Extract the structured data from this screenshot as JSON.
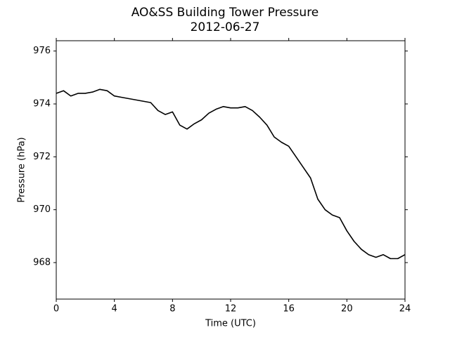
{
  "chart_data": {
    "type": "line",
    "title": "AO&SS Building Tower Pressure",
    "subtitle": "2012-06-27",
    "x_label": "Time (UTC)",
    "y_label": "Pressure (hPa)",
    "x": [
      0,
      0.5,
      1,
      1.5,
      2,
      2.5,
      3,
      3.5,
      4,
      4.5,
      5,
      5.5,
      6,
      6.5,
      7,
      7.5,
      8,
      8.5,
      9,
      9.5,
      10,
      10.5,
      11,
      11.5,
      12,
      12.5,
      13,
      13.5,
      14,
      14.5,
      15,
      15.5,
      16,
      16.5,
      17,
      17.5,
      18,
      18.5,
      19,
      19.5,
      20,
      20.5,
      21,
      21.5,
      22,
      22.5,
      23,
      23.5,
      24
    ],
    "series": [
      {
        "name": "Pressure",
        "color": "#000000",
        "values": [
          974.4,
          974.5,
          974.3,
          974.4,
          974.4,
          974.45,
          974.55,
          974.5,
          974.3,
          974.25,
          974.2,
          974.15,
          974.1,
          974.05,
          973.75,
          973.6,
          973.7,
          973.2,
          973.05,
          973.25,
          973.4,
          973.65,
          973.8,
          973.9,
          973.85,
          973.85,
          973.9,
          973.75,
          973.5,
          973.2,
          972.75,
          972.55,
          972.4,
          972.0,
          971.6,
          971.2,
          970.4,
          970.0,
          969.8,
          969.7,
          969.2,
          968.8,
          968.5,
          968.3,
          968.2,
          968.3,
          968.15,
          968.15,
          968.3
        ]
      }
    ],
    "xlim": [
      0,
      24
    ],
    "xticks": [
      0,
      4,
      8,
      12,
      16,
      20,
      24
    ],
    "ylim": [
      966.62,
      976.39
    ],
    "yticks": [
      968,
      970,
      972,
      974,
      976
    ],
    "grid": false
  }
}
